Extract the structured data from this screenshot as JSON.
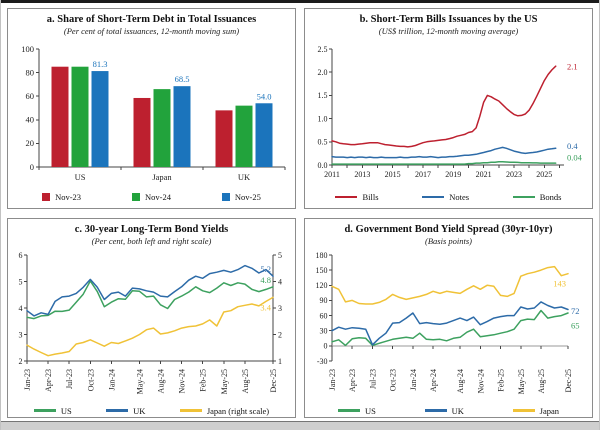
{
  "page": {
    "top_rule_color": "#1c1c1c",
    "bottom_strip_color": "#cfcfcf",
    "panel_border_color": "#8c8c8c",
    "accent_colors": {
      "red": "#bd202f",
      "green_bar": "#22a33c",
      "blue_bar": "#1b74bc",
      "green_line": "#3da15f",
      "blue_line": "#2d6ba8",
      "yellow": "#f0c237"
    }
  },
  "chart_data": [
    {
      "id": "a",
      "type": "bar",
      "title": "a. Share of Short-Term Debt in Total Issuances",
      "subtitle": "(Per cent of total issuances, 12-month moving sum)",
      "categories": [
        "US",
        "Japan",
        "UK"
      ],
      "ylim": [
        0,
        100
      ],
      "yticks": [
        {
          "v": 0,
          "label": "0"
        },
        {
          "v": 20,
          "label": "20"
        },
        {
          "v": 40,
          "label": "40"
        },
        {
          "v": 60,
          "label": "60"
        },
        {
          "v": 80,
          "label": "80"
        },
        {
          "v": 100,
          "label": "100"
        }
      ],
      "series": [
        {
          "name": "Nov-23",
          "color": "#bd202f",
          "values": [
            85,
            58.5,
            48
          ]
        },
        {
          "name": "Nov-24",
          "color": "#22a33c",
          "values": [
            85,
            66,
            52
          ]
        },
        {
          "name": "Nov-25",
          "color": "#1b74bc",
          "values": [
            81.3,
            68.5,
            54
          ]
        }
      ],
      "value_labels": {
        "series_index": 2,
        "texts": [
          "81.3",
          "68.5",
          "54.0"
        ],
        "color": "#1b74bc"
      },
      "legend": [
        {
          "label": "Nov-23",
          "color": "#bd202f",
          "swatch": "square"
        },
        {
          "label": "Nov-24",
          "color": "#22a33c",
          "swatch": "square"
        },
        {
          "label": "Nov-25",
          "color": "#1b74bc",
          "swatch": "square"
        }
      ],
      "grid": false
    },
    {
      "id": "b",
      "type": "line",
      "title": "b. Short-Term Bills Issuances by the US",
      "subtitle": "(US$ trillion, 12-month moving average)",
      "x_start": 2011,
      "x_step": 0.25,
      "xlim": [
        2011,
        2026.3
      ],
      "ylim": [
        0,
        2.5
      ],
      "yticks": [
        {
          "v": 0,
          "label": "0.0"
        },
        {
          "v": 0.5,
          "label": "0.5"
        },
        {
          "v": 1.0,
          "label": "1.0"
        },
        {
          "v": 1.5,
          "label": "1.5"
        },
        {
          "v": 2.0,
          "label": "2.0"
        },
        {
          "v": 2.5,
          "label": "2.5"
        }
      ],
      "xticks": [
        {
          "x": 2011,
          "label": "2011"
        },
        {
          "x": 2012,
          "label": ""
        },
        {
          "x": 2013,
          "label": "2013"
        },
        {
          "x": 2014,
          "label": ""
        },
        {
          "x": 2015,
          "label": "2015"
        },
        {
          "x": 2016,
          "label": ""
        },
        {
          "x": 2017,
          "label": "2017"
        },
        {
          "x": 2018,
          "label": ""
        },
        {
          "x": 2019,
          "label": "2019"
        },
        {
          "x": 2020,
          "label": ""
        },
        {
          "x": 2021,
          "label": "2021"
        },
        {
          "x": 2022,
          "label": ""
        },
        {
          "x": 2023,
          "label": "2023"
        },
        {
          "x": 2024,
          "label": ""
        },
        {
          "x": 2025,
          "label": "2025"
        },
        {
          "x": 2026,
          "label": ""
        }
      ],
      "series": [
        {
          "name": "Bonds",
          "color": "#3da15f",
          "axis": "left",
          "values": [
            0.02,
            0.02,
            0.02,
            0.02,
            0.02,
            0.02,
            0.02,
            0.02,
            0.02,
            0.02,
            0.02,
            0.02,
            0.02,
            0.02,
            0.02,
            0.02,
            0.02,
            0.02,
            0.02,
            0.02,
            0.02,
            0.02,
            0.02,
            0.02,
            0.02,
            0.02,
            0.02,
            0.02,
            0.02,
            0.02,
            0.02,
            0.02,
            0.02,
            0.02,
            0.02,
            0.02,
            0.03,
            0.03,
            0.04,
            0.04,
            0.05,
            0.05,
            0.06,
            0.06,
            0.07,
            0.07,
            0.065,
            0.06,
            0.06,
            0.055,
            0.05,
            0.05,
            0.05,
            0.045,
            0.045,
            0.04,
            0.04,
            0.04,
            0.04,
            0.04
          ]
        },
        {
          "name": "Notes",
          "color": "#2d6ba8",
          "axis": "left",
          "values": [
            0.18,
            0.17,
            0.17,
            0.17,
            0.16,
            0.17,
            0.16,
            0.17,
            0.17,
            0.16,
            0.17,
            0.16,
            0.16,
            0.17,
            0.16,
            0.16,
            0.16,
            0.16,
            0.17,
            0.16,
            0.16,
            0.17,
            0.17,
            0.18,
            0.17,
            0.17,
            0.18,
            0.17,
            0.16,
            0.17,
            0.17,
            0.18,
            0.18,
            0.19,
            0.2,
            0.21,
            0.21,
            0.22,
            0.23,
            0.25,
            0.27,
            0.29,
            0.31,
            0.34,
            0.36,
            0.38,
            0.36,
            0.33,
            0.3,
            0.28,
            0.26,
            0.25,
            0.26,
            0.27,
            0.28,
            0.3,
            0.32,
            0.34,
            0.35,
            0.36
          ]
        },
        {
          "name": "Bills",
          "color": "#bd202f",
          "axis": "left",
          "values": [
            0.52,
            0.5,
            0.47,
            0.46,
            0.45,
            0.44,
            0.44,
            0.45,
            0.46,
            0.47,
            0.48,
            0.48,
            0.48,
            0.46,
            0.44,
            0.43,
            0.42,
            0.41,
            0.4,
            0.4,
            0.39,
            0.4,
            0.42,
            0.45,
            0.48,
            0.5,
            0.51,
            0.52,
            0.53,
            0.54,
            0.55,
            0.57,
            0.59,
            0.62,
            0.64,
            0.66,
            0.7,
            0.72,
            0.8,
            1.05,
            1.35,
            1.5,
            1.47,
            1.42,
            1.38,
            1.3,
            1.22,
            1.15,
            1.09,
            1.06,
            1.07,
            1.1,
            1.18,
            1.32,
            1.48,
            1.65,
            1.82,
            1.95,
            2.05,
            2.13
          ]
        }
      ],
      "end_labels": [
        {
          "text": "2.1",
          "color": "#bd202f",
          "axis": "left",
          "v": 2.13,
          "place": "out",
          "dy": 1
        },
        {
          "text": "0.4",
          "color": "#2d6ba8",
          "axis": "left",
          "v": 0.36,
          "place": "out",
          "dy": -2
        },
        {
          "text": "0.04",
          "color": "#3da15f",
          "axis": "left",
          "v": 0.04,
          "place": "out",
          "dy": -5
        }
      ],
      "legend": [
        {
          "label": "Bills",
          "color": "#bd202f",
          "swatch": "line"
        },
        {
          "label": "Notes",
          "color": "#2d6ba8",
          "swatch": "line"
        },
        {
          "label": "Bonds",
          "color": "#3da15f",
          "swatch": "line"
        }
      ],
      "grid": false
    },
    {
      "id": "c",
      "type": "line",
      "title": "c. 30-year Long-Term Bond Yields",
      "subtitle": "(Per cent, both left and right scale)",
      "n": 36,
      "dual_axis": true,
      "rotate_x": true,
      "ylim": [
        2,
        6
      ],
      "ylim_right": [
        1,
        5
      ],
      "yticks": [
        {
          "v": 2,
          "label": "2"
        },
        {
          "v": 3,
          "label": "3"
        },
        {
          "v": 4,
          "label": "4"
        },
        {
          "v": 5,
          "label": "5"
        },
        {
          "v": 6,
          "label": "6"
        }
      ],
      "yticks_right": [
        {
          "v": 1,
          "label": "1"
        },
        {
          "v": 2,
          "label": "2"
        },
        {
          "v": 3,
          "label": "3"
        },
        {
          "v": 4,
          "label": "4"
        },
        {
          "v": 5,
          "label": "5"
        }
      ],
      "xticks": [
        {
          "i": 0,
          "label": "Jan-23"
        },
        {
          "i": 3,
          "label": "Apr-23"
        },
        {
          "i": 6,
          "label": "Jul-23"
        },
        {
          "i": 9,
          "label": "Oct-23"
        },
        {
          "i": 12,
          "label": "Jan-24"
        },
        {
          "i": 16,
          "label": "May-24"
        },
        {
          "i": 19,
          "label": "Aug-24"
        },
        {
          "i": 22,
          "label": "Nov-24"
        },
        {
          "i": 25,
          "label": "Feb-25"
        },
        {
          "i": 28,
          "label": "May-25"
        },
        {
          "i": 31,
          "label": "Aug-25"
        },
        {
          "i": 35,
          "label": "Dec-25"
        }
      ],
      "series": [
        {
          "name": "US",
          "color": "#3da15f",
          "axis": "left",
          "values": [
            3.65,
            3.6,
            3.7,
            3.72,
            3.88,
            3.87,
            3.92,
            4.22,
            4.52,
            5.02,
            4.62,
            4.05,
            4.22,
            4.35,
            4.33,
            4.65,
            4.63,
            4.42,
            4.45,
            4.12,
            3.98,
            4.32,
            4.45,
            4.6,
            4.8,
            4.65,
            4.58,
            4.75,
            4.95,
            4.85,
            4.95,
            4.9,
            4.7,
            4.62,
            4.7,
            4.8
          ]
        },
        {
          "name": "UK",
          "color": "#2d6ba8",
          "axis": "left",
          "values": [
            3.9,
            3.7,
            3.82,
            3.76,
            4.25,
            4.42,
            4.45,
            4.55,
            4.78,
            5.08,
            4.78,
            4.32,
            4.55,
            4.6,
            4.45,
            4.75,
            4.72,
            4.65,
            4.6,
            4.45,
            4.42,
            4.62,
            4.8,
            5.05,
            5.2,
            5.12,
            5.3,
            5.35,
            5.42,
            5.35,
            5.45,
            5.6,
            5.5,
            5.32,
            5.45,
            5.2
          ]
        },
        {
          "name": "Japan (right scale)",
          "color": "#f0c237",
          "axis": "right",
          "values": [
            1.6,
            1.45,
            1.32,
            1.2,
            1.26,
            1.3,
            1.36,
            1.64,
            1.7,
            1.8,
            1.68,
            1.56,
            1.7,
            1.66,
            1.76,
            1.86,
            2.0,
            2.18,
            2.24,
            2.02,
            2.06,
            2.14,
            2.24,
            2.3,
            2.32,
            2.4,
            2.55,
            2.32,
            2.85,
            2.9,
            3.05,
            3.1,
            3.15,
            3.08,
            3.25,
            3.4
          ]
        }
      ],
      "end_labels": [
        {
          "text": "5.2",
          "color": "#2d6ba8",
          "axis": "left",
          "v": 5.2,
          "place": "in",
          "dy": -4
        },
        {
          "text": "4.8",
          "color": "#3da15f",
          "axis": "left",
          "v": 4.8,
          "place": "in",
          "dy": -4
        },
        {
          "text": "3.4",
          "color": "#f0c237",
          "axis": "right",
          "v": 3.4,
          "place": "in",
          "dy": 13
        }
      ],
      "legend": [
        {
          "label": "US",
          "color": "#3da15f",
          "swatch": "line"
        },
        {
          "label": "UK",
          "color": "#2d6ba8",
          "swatch": "line"
        },
        {
          "label": "Japan (right scale)",
          "color": "#f0c237",
          "swatch": "line"
        }
      ],
      "grid": false
    },
    {
      "id": "d",
      "type": "line",
      "title": "d. Government Bond Yield Spread (30yr-10yr)",
      "subtitle": "(Basis points)",
      "n": 36,
      "rotate_x": true,
      "zero_axis": true,
      "ylim": [
        -30,
        180
      ],
      "yticks": [
        {
          "v": -30,
          "label": "-30"
        },
        {
          "v": 0,
          "label": "0"
        },
        {
          "v": 30,
          "label": "30"
        },
        {
          "v": 60,
          "label": "60"
        },
        {
          "v": 90,
          "label": "90"
        },
        {
          "v": 120,
          "label": "120"
        },
        {
          "v": 150,
          "label": "150"
        },
        {
          "v": 180,
          "label": "180"
        }
      ],
      "xticks": [
        {
          "i": 0,
          "label": "Jan-23"
        },
        {
          "i": 3,
          "label": "Apr-23"
        },
        {
          "i": 6,
          "label": "Jul-23"
        },
        {
          "i": 9,
          "label": "Oct-23"
        },
        {
          "i": 12,
          "label": "Jan-24"
        },
        {
          "i": 15,
          "label": "Apr-24"
        },
        {
          "i": 19,
          "label": "Aug-24"
        },
        {
          "i": 22,
          "label": "Nov-24"
        },
        {
          "i": 25,
          "label": "Feb-25"
        },
        {
          "i": 28,
          "label": "May-25"
        },
        {
          "i": 31,
          "label": "Aug-25"
        },
        {
          "i": 35,
          "label": "Dec-25"
        }
      ],
      "series": [
        {
          "name": "US",
          "color": "#3da15f",
          "axis": "left",
          "values": [
            8,
            12,
            1,
            14,
            16,
            15,
            1,
            5,
            9,
            13,
            15,
            17,
            15,
            25,
            13,
            12,
            13,
            10,
            15,
            17,
            27,
            33,
            18,
            20,
            22,
            25,
            28,
            33,
            50,
            53,
            52,
            70,
            55,
            58,
            60,
            65
          ]
        },
        {
          "name": "UK",
          "color": "#2d6ba8",
          "axis": "left",
          "values": [
            30,
            37,
            33,
            36,
            35,
            33,
            2,
            15,
            25,
            45,
            46,
            55,
            65,
            44,
            46,
            44,
            43,
            45,
            50,
            55,
            50,
            57,
            42,
            48,
            55,
            58,
            60,
            60,
            77,
            73,
            75,
            87,
            80,
            75,
            77,
            72
          ]
        },
        {
          "name": "Japan",
          "color": "#f0c237",
          "axis": "left",
          "values": [
            118,
            112,
            87,
            90,
            84,
            83,
            83,
            86,
            92,
            102,
            96,
            92,
            95,
            98,
            102,
            108,
            104,
            108,
            106,
            104,
            112,
            119,
            112,
            120,
            118,
            100,
            98,
            104,
            138,
            143,
            146,
            150,
            155,
            157,
            139,
            143
          ]
        }
      ],
      "end_labels": [
        {
          "text": "143",
          "color": "#f0c237",
          "axis": "left",
          "v": 143,
          "place": "in",
          "dy": 13
        },
        {
          "text": "72",
          "color": "#2d6ba8",
          "axis": "left",
          "v": 72,
          "place": "out",
          "dy": 2
        },
        {
          "text": "65",
          "color": "#3da15f",
          "axis": "left",
          "v": 65,
          "place": "out",
          "dy": 13
        }
      ],
      "legend": [
        {
          "label": "US",
          "color": "#3da15f",
          "swatch": "line"
        },
        {
          "label": "UK",
          "color": "#2d6ba8",
          "swatch": "line"
        },
        {
          "label": "Japan",
          "color": "#f0c237",
          "swatch": "line"
        }
      ],
      "grid": false
    }
  ]
}
